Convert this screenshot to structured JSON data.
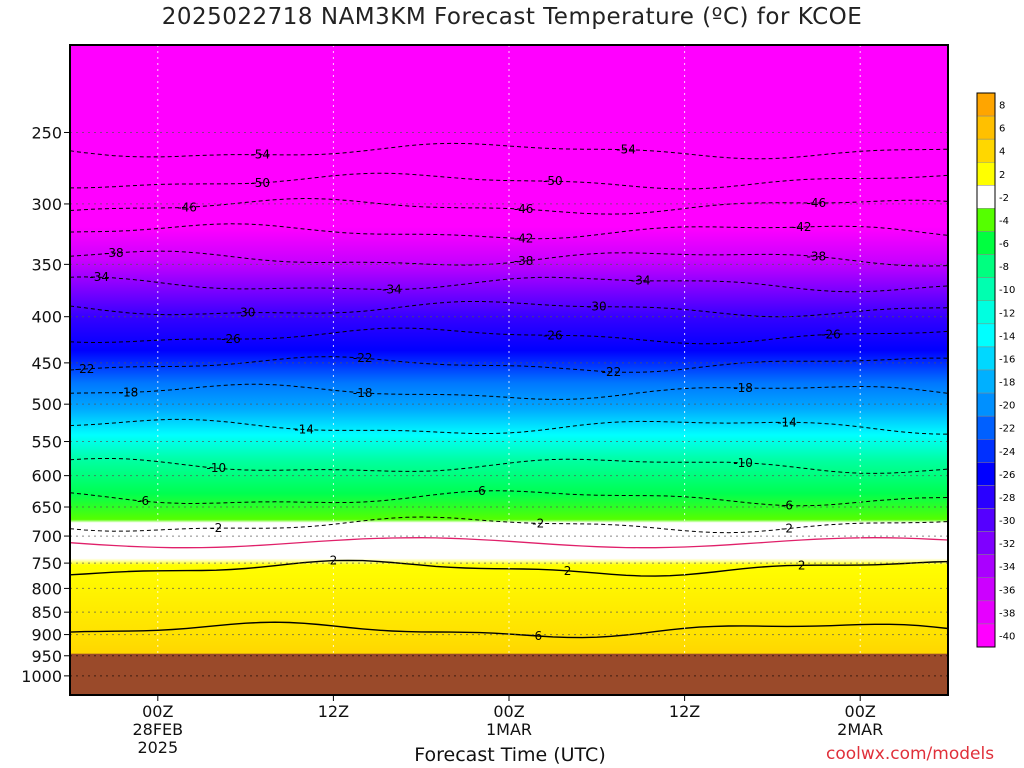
{
  "title": "2025022718 NAM3KM Forecast Temperature (ºC) for KCOE",
  "watermark": "coolwx.com/models",
  "chart_data": {
    "type": "heatmap",
    "title": "2025022718 NAM3KM Forecast Temperature (ºC) for KCOE",
    "xlabel": "Forecast Time (UTC)",
    "ylabel": "",
    "x_axis": {
      "ticks": [
        {
          "label": "00Z",
          "sub": [
            "28FEB",
            "2025"
          ],
          "hours": 6
        },
        {
          "label": "12Z",
          "sub": [],
          "hours": 18
        },
        {
          "label": "00Z",
          "sub": [
            "1MAR"
          ],
          "hours": 30
        },
        {
          "label": "12Z",
          "sub": [],
          "hours": 42
        },
        {
          "label": "00Z",
          "sub": [
            "2MAR"
          ],
          "hours": 54
        }
      ],
      "range_hours": [
        0,
        60
      ]
    },
    "y_axis": {
      "unit": "hPa",
      "ticks": [
        250,
        300,
        350,
        400,
        450,
        500,
        550,
        600,
        650,
        700,
        750,
        800,
        850,
        900,
        950,
        1000
      ],
      "range": [
        200,
        1050
      ],
      "scale": "log-pressure"
    },
    "grid": true,
    "ground_level_hPa": 945,
    "colorbar": {
      "placement": "right",
      "levels": [
        8,
        6,
        4,
        2,
        -2,
        -4,
        -6,
        -8,
        -10,
        -12,
        -14,
        -16,
        -18,
        -20,
        -22,
        -24,
        -26,
        -28,
        -30,
        -32,
        -34,
        -36,
        -38,
        -40
      ],
      "colors": [
        "#ffa500",
        "#ffc000",
        "#ffd700",
        "#ffff00",
        "#ffffff",
        "#55ff00",
        "#00ff40",
        "#00ff80",
        "#00ffb0",
        "#00ffe0",
        "#00ffff",
        "#00d8ff",
        "#00b0ff",
        "#0090ff",
        "#0060ff",
        "#0030ff",
        "#0000ff",
        "#2a00ff",
        "#5500ff",
        "#7f00ff",
        "#aa00ff",
        "#cc00ff",
        "#e600ff",
        "#ff00ff"
      ]
    },
    "contour_labels": [
      {
        "value": -54,
        "hours": [
          13,
          38
        ]
      },
      {
        "value": -50,
        "hours": [
          13,
          33
        ]
      },
      {
        "value": -46,
        "hours": [
          8,
          31,
          51
        ]
      },
      {
        "value": -42,
        "hours": [
          31,
          50
        ]
      },
      {
        "value": -38,
        "hours": [
          3,
          31,
          51
        ]
      },
      {
        "value": -34,
        "hours": [
          2,
          22,
          39
        ]
      },
      {
        "value": -30,
        "hours": [
          12,
          36
        ]
      },
      {
        "value": -26,
        "hours": [
          11,
          33,
          52
        ]
      },
      {
        "value": -22,
        "hours": [
          1,
          20,
          37
        ]
      },
      {
        "value": -18,
        "hours": [
          4,
          20,
          46
        ]
      },
      {
        "value": -14,
        "hours": [
          16,
          49
        ]
      },
      {
        "value": -10,
        "hours": [
          10,
          46
        ]
      },
      {
        "value": -6,
        "hours": [
          5,
          28,
          49
        ]
      },
      {
        "value": -2,
        "hours": [
          10,
          32,
          49
        ]
      },
      {
        "value": 2,
        "hours": [
          18,
          34,
          50
        ]
      },
      {
        "value": 6,
        "hours": [
          32
        ]
      }
    ]
  }
}
